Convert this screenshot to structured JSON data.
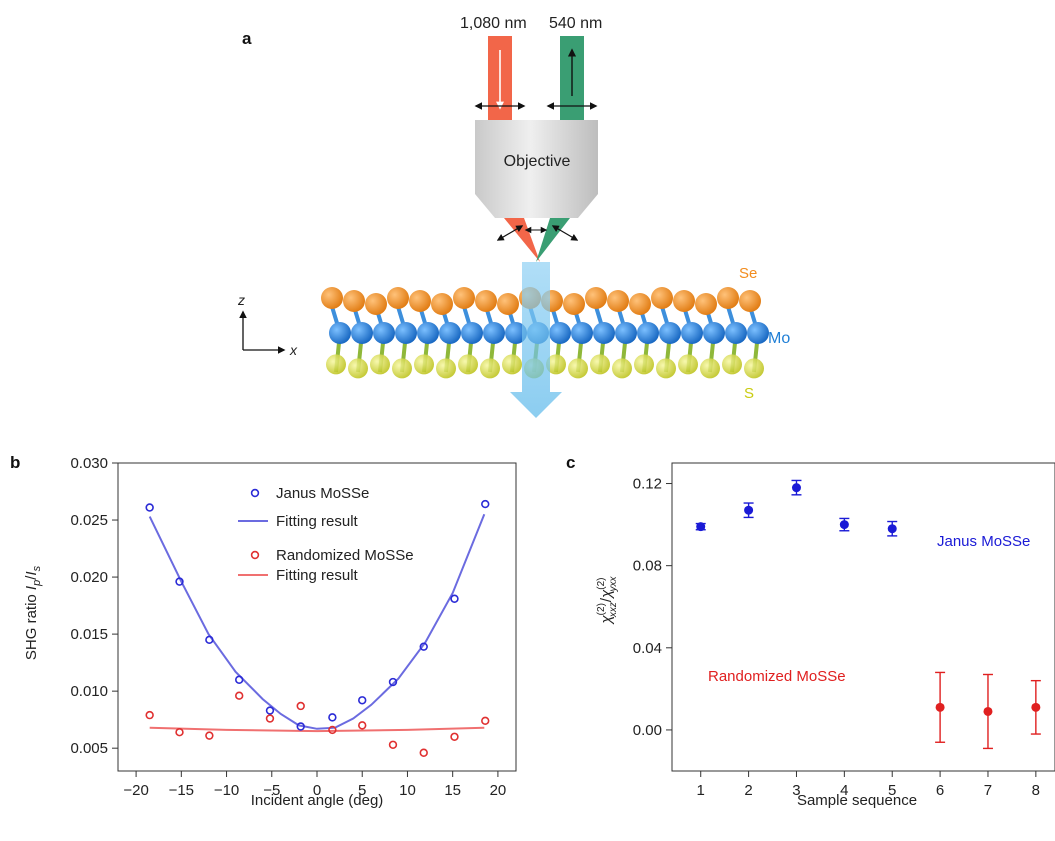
{
  "panel_a": {
    "label": "a",
    "beam_in_label": "1,080 nm",
    "beam_out_label": "540 nm",
    "objective_label": "Objective",
    "atom_labels": {
      "se": "Se",
      "mo": "Mo",
      "s": "S"
    },
    "axis_z": "z",
    "axis_x": "x",
    "colors": {
      "beam_in": "#f26649",
      "beam_out": "#3a9e73",
      "se": "#f28c1e",
      "mo": "#1f7fd6",
      "s": "#d8dc1e",
      "shg": "#7ec8f0"
    }
  },
  "chart_data": [
    {
      "panel": "b",
      "type": "scatter",
      "xlabel": "Incident angle (deg)",
      "ylabel_parts": [
        "SHG ratio ",
        "I",
        "p",
        "/",
        "I",
        "s"
      ],
      "xlim": [
        -22,
        22
      ],
      "ylim": [
        0.003,
        0.03
      ],
      "xticks": [
        -20,
        -15,
        -10,
        -5,
        0,
        5,
        10,
        15,
        20
      ],
      "xtick_labels": [
        "−20",
        "−15",
        "−10",
        "−5",
        "0",
        "5",
        "10",
        "15",
        "20"
      ],
      "yticks": [
        0.005,
        0.01,
        0.015,
        0.02,
        0.025,
        0.03
      ],
      "ytick_labels": [
        "0.005",
        "0.010",
        "0.015",
        "0.020",
        "0.025",
        "0.030"
      ],
      "legend": [
        {
          "label": "Janus MoSSe",
          "kind": "marker",
          "color": "#2b2bd6"
        },
        {
          "label": "Fitting result",
          "kind": "line",
          "color": "#6b6be0"
        },
        {
          "label": "Randomized MoSSe",
          "kind": "marker",
          "color": "#e03030"
        },
        {
          "label": "Fitting result",
          "kind": "line",
          "color": "#f07070"
        }
      ],
      "series": [
        {
          "name": "Janus MoSSe",
          "kind": "scatter",
          "color": "#2b2bd6",
          "x": [
            -18.5,
            -15.2,
            -11.9,
            -8.6,
            -5.2,
            -1.8,
            1.7,
            5.0,
            8.4,
            11.8,
            15.2,
            18.6
          ],
          "y": [
            0.0261,
            0.0196,
            0.0145,
            0.011,
            0.0083,
            0.0069,
            0.0077,
            0.0092,
            0.0108,
            0.0139,
            0.0181,
            0.0264
          ]
        },
        {
          "name": "Fitting result",
          "kind": "line",
          "color": "#6b6be0",
          "x": [
            -18.5,
            -15,
            -12,
            -9,
            -6,
            -4,
            -2,
            0,
            2,
            4,
            6,
            9,
            12,
            15,
            18.5
          ],
          "y": [
            0.0253,
            0.0196,
            0.015,
            0.0117,
            0.0093,
            0.008,
            0.007,
            0.0067,
            0.0068,
            0.0076,
            0.0088,
            0.0111,
            0.0143,
            0.0186,
            0.0255
          ]
        },
        {
          "name": "Randomized MoSSe",
          "kind": "scatter",
          "color": "#e03030",
          "x": [
            -18.5,
            -15.2,
            -11.9,
            -8.6,
            -5.2,
            -1.8,
            1.7,
            5.0,
            8.4,
            11.8,
            15.2,
            18.6
          ],
          "y": [
            0.0079,
            0.0064,
            0.0061,
            0.0096,
            0.0076,
            0.0087,
            0.0066,
            0.007,
            0.0053,
            0.0046,
            0.006,
            0.0074
          ]
        },
        {
          "name": "Fitting result",
          "kind": "line",
          "color": "#f07070",
          "x": [
            -18.5,
            -10,
            0,
            10,
            18.5
          ],
          "y": [
            0.0068,
            0.0066,
            0.0065,
            0.0066,
            0.0068
          ]
        }
      ]
    },
    {
      "panel": "c",
      "type": "scatter",
      "xlabel": "Sample sequence",
      "ylabel_sym": "χ",
      "ylabel_sup": "(2)",
      "ylabel_sub_num": "xxz",
      "ylabel_sub_den": "yxx",
      "xlim": [
        0.4,
        8.4
      ],
      "ylim": [
        -0.02,
        0.13
      ],
      "xticks": [
        1,
        2,
        3,
        4,
        5,
        6,
        7,
        8
      ],
      "xtick_labels": [
        "1",
        "2",
        "3",
        "4",
        "5",
        "6",
        "7",
        "8"
      ],
      "yticks": [
        0,
        0.04,
        0.08,
        0.12
      ],
      "ytick_labels": [
        "0.00",
        "0.04",
        "0.08",
        "0.12"
      ],
      "series": [
        {
          "name": "Janus MoSSe",
          "color": "#1a1ad6",
          "x": [
            1,
            2,
            3,
            4,
            5
          ],
          "y": [
            0.099,
            0.107,
            0.118,
            0.1,
            0.098
          ],
          "err": [
            0.0015,
            0.0035,
            0.0035,
            0.003,
            0.0035
          ]
        },
        {
          "name": "Randomized MoSSe",
          "color": "#e02020",
          "x": [
            6,
            7,
            8
          ],
          "y": [
            0.011,
            0.009,
            0.011
          ],
          "err": [
            0.017,
            0.018,
            0.013
          ]
        }
      ]
    }
  ]
}
